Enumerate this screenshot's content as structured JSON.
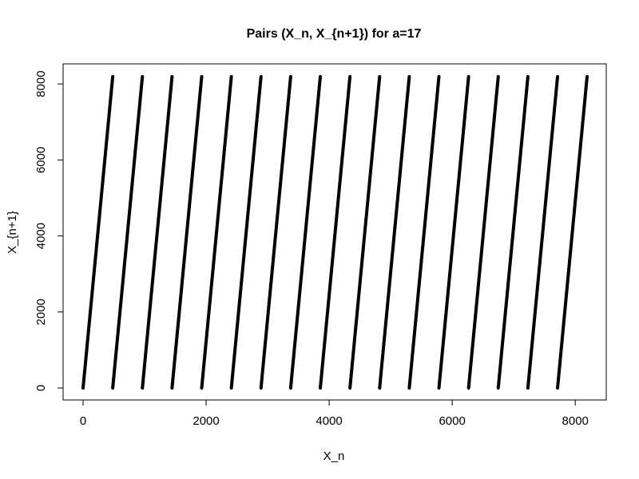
{
  "chart_data": {
    "type": "scatter",
    "title": "Pairs (X_n, X_{n+1}) for a=17",
    "xlabel": "X_n",
    "ylabel": "X_{n+1}",
    "xlim": [
      0,
      8192
    ],
    "ylim": [
      0,
      8192
    ],
    "x_ticks": [
      0,
      2000,
      4000,
      6000,
      8000
    ],
    "y_ticks": [
      0,
      2000,
      4000,
      6000,
      8000
    ],
    "grid": false,
    "legend": "none",
    "description_of_pattern": "",
    "segments": [
      {
        "x": [
          0,
          482
        ],
        "y": [
          0,
          8192
        ]
      },
      {
        "x": [
          482,
          964
        ],
        "y": [
          0,
          8192
        ]
      },
      {
        "x": [
          964,
          1446
        ],
        "y": [
          0,
          8192
        ]
      },
      {
        "x": [
          1446,
          1928
        ],
        "y": [
          0,
          8192
        ]
      },
      {
        "x": [
          1928,
          2410
        ],
        "y": [
          0,
          8192
        ]
      },
      {
        "x": [
          2410,
          2892
        ],
        "y": [
          0,
          8192
        ]
      },
      {
        "x": [
          2892,
          3374
        ],
        "y": [
          0,
          8192
        ]
      },
      {
        "x": [
          3374,
          3856
        ],
        "y": [
          0,
          8192
        ]
      },
      {
        "x": [
          3856,
          4338
        ],
        "y": [
          0,
          8192
        ]
      },
      {
        "x": [
          4338,
          4820
        ],
        "y": [
          0,
          8192
        ]
      },
      {
        "x": [
          4820,
          5302
        ],
        "y": [
          0,
          8192
        ]
      },
      {
        "x": [
          5302,
          5784
        ],
        "y": [
          0,
          8192
        ]
      },
      {
        "x": [
          5784,
          6266
        ],
        "y": [
          0,
          8192
        ]
      },
      {
        "x": [
          6266,
          6748
        ],
        "y": [
          0,
          8192
        ]
      },
      {
        "x": [
          6748,
          7230
        ],
        "y": [
          0,
          8192
        ]
      },
      {
        "x": [
          7230,
          7712
        ],
        "y": [
          0,
          8192
        ]
      },
      {
        "x": [
          7712,
          8192
        ],
        "y": [
          0,
          8192
        ]
      }
    ],
    "colors": {
      "series": "#000000",
      "axis": "#000000",
      "background": "#ffffff"
    }
  }
}
